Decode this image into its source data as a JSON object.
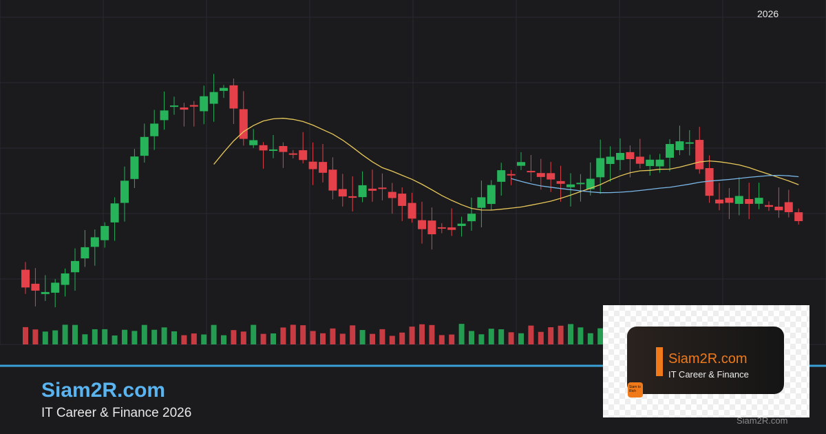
{
  "header": {
    "year": "2026"
  },
  "footer": {
    "title": "Siam2R.com",
    "subtitle": "IT Career & Finance 2026",
    "watermark": "Siam2R.com"
  },
  "logo": {
    "title": "Siam2R.com",
    "tagline": "IT Career & Finance",
    "badge": "Siam to Rich"
  }
}
